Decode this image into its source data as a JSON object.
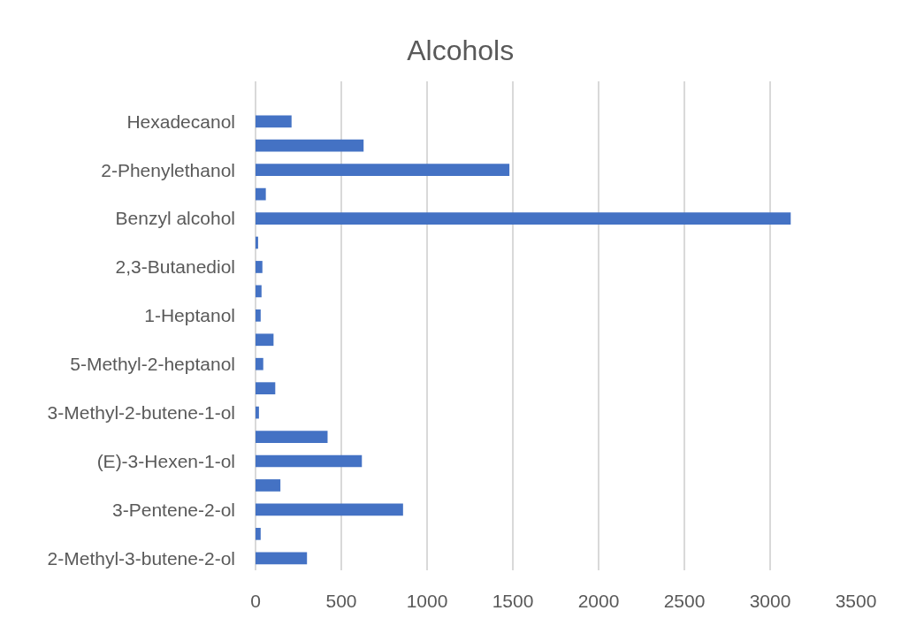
{
  "chart_data": {
    "type": "bar",
    "orientation": "horizontal",
    "title": "Alcohols",
    "categories": [
      "Hexadecanol",
      null,
      "2-Phenylethanol",
      null,
      "Benzyl alcohol",
      null,
      "2,3-Butanediol",
      null,
      "1-Heptanol",
      null,
      "5-Methyl-2-heptanol",
      null,
      "3-Methyl-2-butene-1-ol",
      null,
      "(E)-3-Hexen-1-ol",
      null,
      "3-Pentene-2-ol",
      null,
      "2-Methyl-3-butene-2-ol"
    ],
    "values": [
      210,
      630,
      1480,
      60,
      3120,
      15,
      40,
      35,
      30,
      105,
      45,
      115,
      20,
      420,
      620,
      145,
      860,
      30,
      300
    ],
    "color": "#4472c4",
    "xlim": [
      0,
      3500
    ],
    "xticks": [
      0,
      500,
      1000,
      1500,
      2000,
      2500,
      3000,
      3500
    ],
    "grid": "x"
  }
}
